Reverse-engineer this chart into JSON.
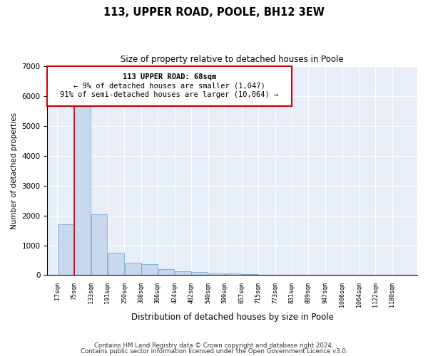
{
  "title": "113, UPPER ROAD, POOLE, BH12 3EW",
  "subtitle": "Size of property relative to detached houses in Poole",
  "xlabel": "Distribution of detached houses by size in Poole",
  "ylabel": "Number of detached properties",
  "footnote1": "Contains HM Land Registry data © Crown copyright and database right 2024.",
  "footnote2": "Contains public sector information licensed under the Open Government Licence v3.0.",
  "bar_color": "#c8d9ef",
  "bar_edge_color": "#7aaad6",
  "annotation_box_edge": "#cc0000",
  "subject_line_color": "#cc0000",
  "annotation_text_line1": "113 UPPER ROAD: 68sqm",
  "annotation_text_line2": "← 9% of detached houses are smaller (1,047)",
  "annotation_text_line3": "91% of semi-detached houses are larger (10,064) →",
  "subject_bin_index": 1,
  "categories": [
    "17sqm",
    "75sqm",
    "133sqm",
    "191sqm",
    "250sqm",
    "308sqm",
    "366sqm",
    "424sqm",
    "482sqm",
    "540sqm",
    "599sqm",
    "657sqm",
    "715sqm",
    "773sqm",
    "831sqm",
    "889sqm",
    "947sqm",
    "1006sqm",
    "1064sqm",
    "1122sqm",
    "1180sqm"
  ],
  "bin_edges": [
    17,
    75,
    133,
    191,
    250,
    308,
    366,
    424,
    482,
    540,
    599,
    657,
    715,
    773,
    831,
    889,
    947,
    1006,
    1064,
    1122,
    1180
  ],
  "values": [
    1700,
    5800,
    2050,
    750,
    420,
    380,
    200,
    130,
    100,
    70,
    50,
    30,
    20,
    15,
    10,
    7,
    5,
    4,
    3,
    2,
    1
  ],
  "ylim": [
    0,
    7000
  ],
  "yticks": [
    0,
    1000,
    2000,
    3000,
    4000,
    5000,
    6000,
    7000
  ],
  "plot_bg_color": "#e8eef8"
}
